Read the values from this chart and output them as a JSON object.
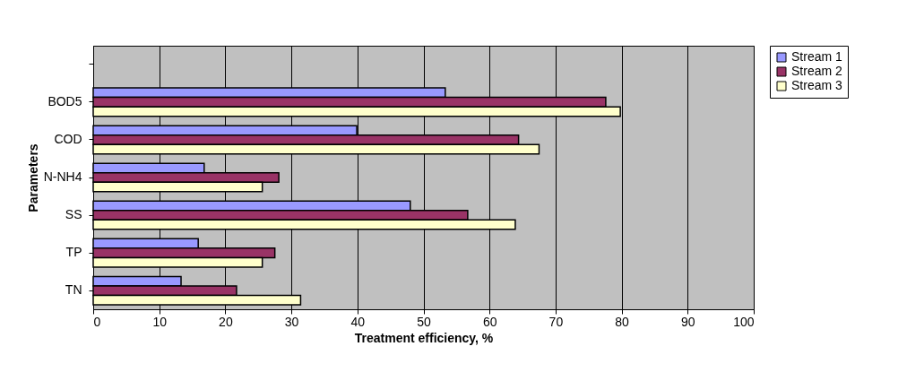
{
  "chart_data": {
    "type": "bar",
    "orientation": "horizontal",
    "xlabel": "Treatment efficiency, %",
    "ylabel": "Parameters",
    "categories": [
      null,
      "BOD5",
      "COD",
      "N-NH4",
      "SS",
      "TP",
      "TN"
    ],
    "series": [
      {
        "name": "Stream 1",
        "color": "#9999ff",
        "values": [
          null,
          53.3,
          39.9,
          16.8,
          48.0,
          15.9,
          13.3
        ]
      },
      {
        "name": "Stream 2",
        "color": "#993366",
        "values": [
          null,
          77.6,
          64.4,
          28.1,
          56.7,
          27.5,
          21.7
        ]
      },
      {
        "name": "Stream 3",
        "color": "#ffffcc",
        "values": [
          null,
          79.8,
          67.5,
          25.6,
          63.9,
          25.6,
          31.4
        ]
      }
    ],
    "xlim": [
      0,
      100
    ],
    "xticks": [
      0,
      10,
      20,
      30,
      40,
      50,
      60,
      70,
      80,
      90,
      100
    ],
    "grid": "x",
    "legend": "right"
  }
}
